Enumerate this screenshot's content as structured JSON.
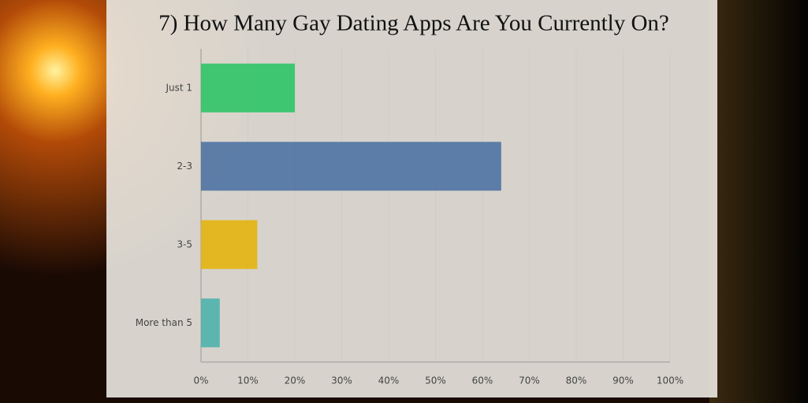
{
  "chart_data": {
    "type": "hbar",
    "title": "7) How Many Gay Dating Apps Are You Currently On?",
    "categories": [
      "Just 1",
      "2-3",
      "3-5",
      "More than 5"
    ],
    "values": [
      20,
      64,
      12,
      4
    ],
    "colors": [
      "#2fc466",
      "#4f73a3",
      "#e4b40e",
      "#4fb2ac"
    ],
    "xlim": [
      0,
      100
    ],
    "xticks": [
      {
        "value": 0,
        "label": "0%"
      },
      {
        "value": 10,
        "label": "10%"
      },
      {
        "value": 20,
        "label": "20%"
      },
      {
        "value": 30,
        "label": "30%"
      },
      {
        "value": 40,
        "label": "40%"
      },
      {
        "value": 50,
        "label": "50%"
      },
      {
        "value": 60,
        "label": "60%"
      },
      {
        "value": 70,
        "label": "70%"
      },
      {
        "value": 80,
        "label": "80%"
      },
      {
        "value": 90,
        "label": "90%"
      },
      {
        "value": 100,
        "label": "100%"
      }
    ],
    "grid": true
  }
}
